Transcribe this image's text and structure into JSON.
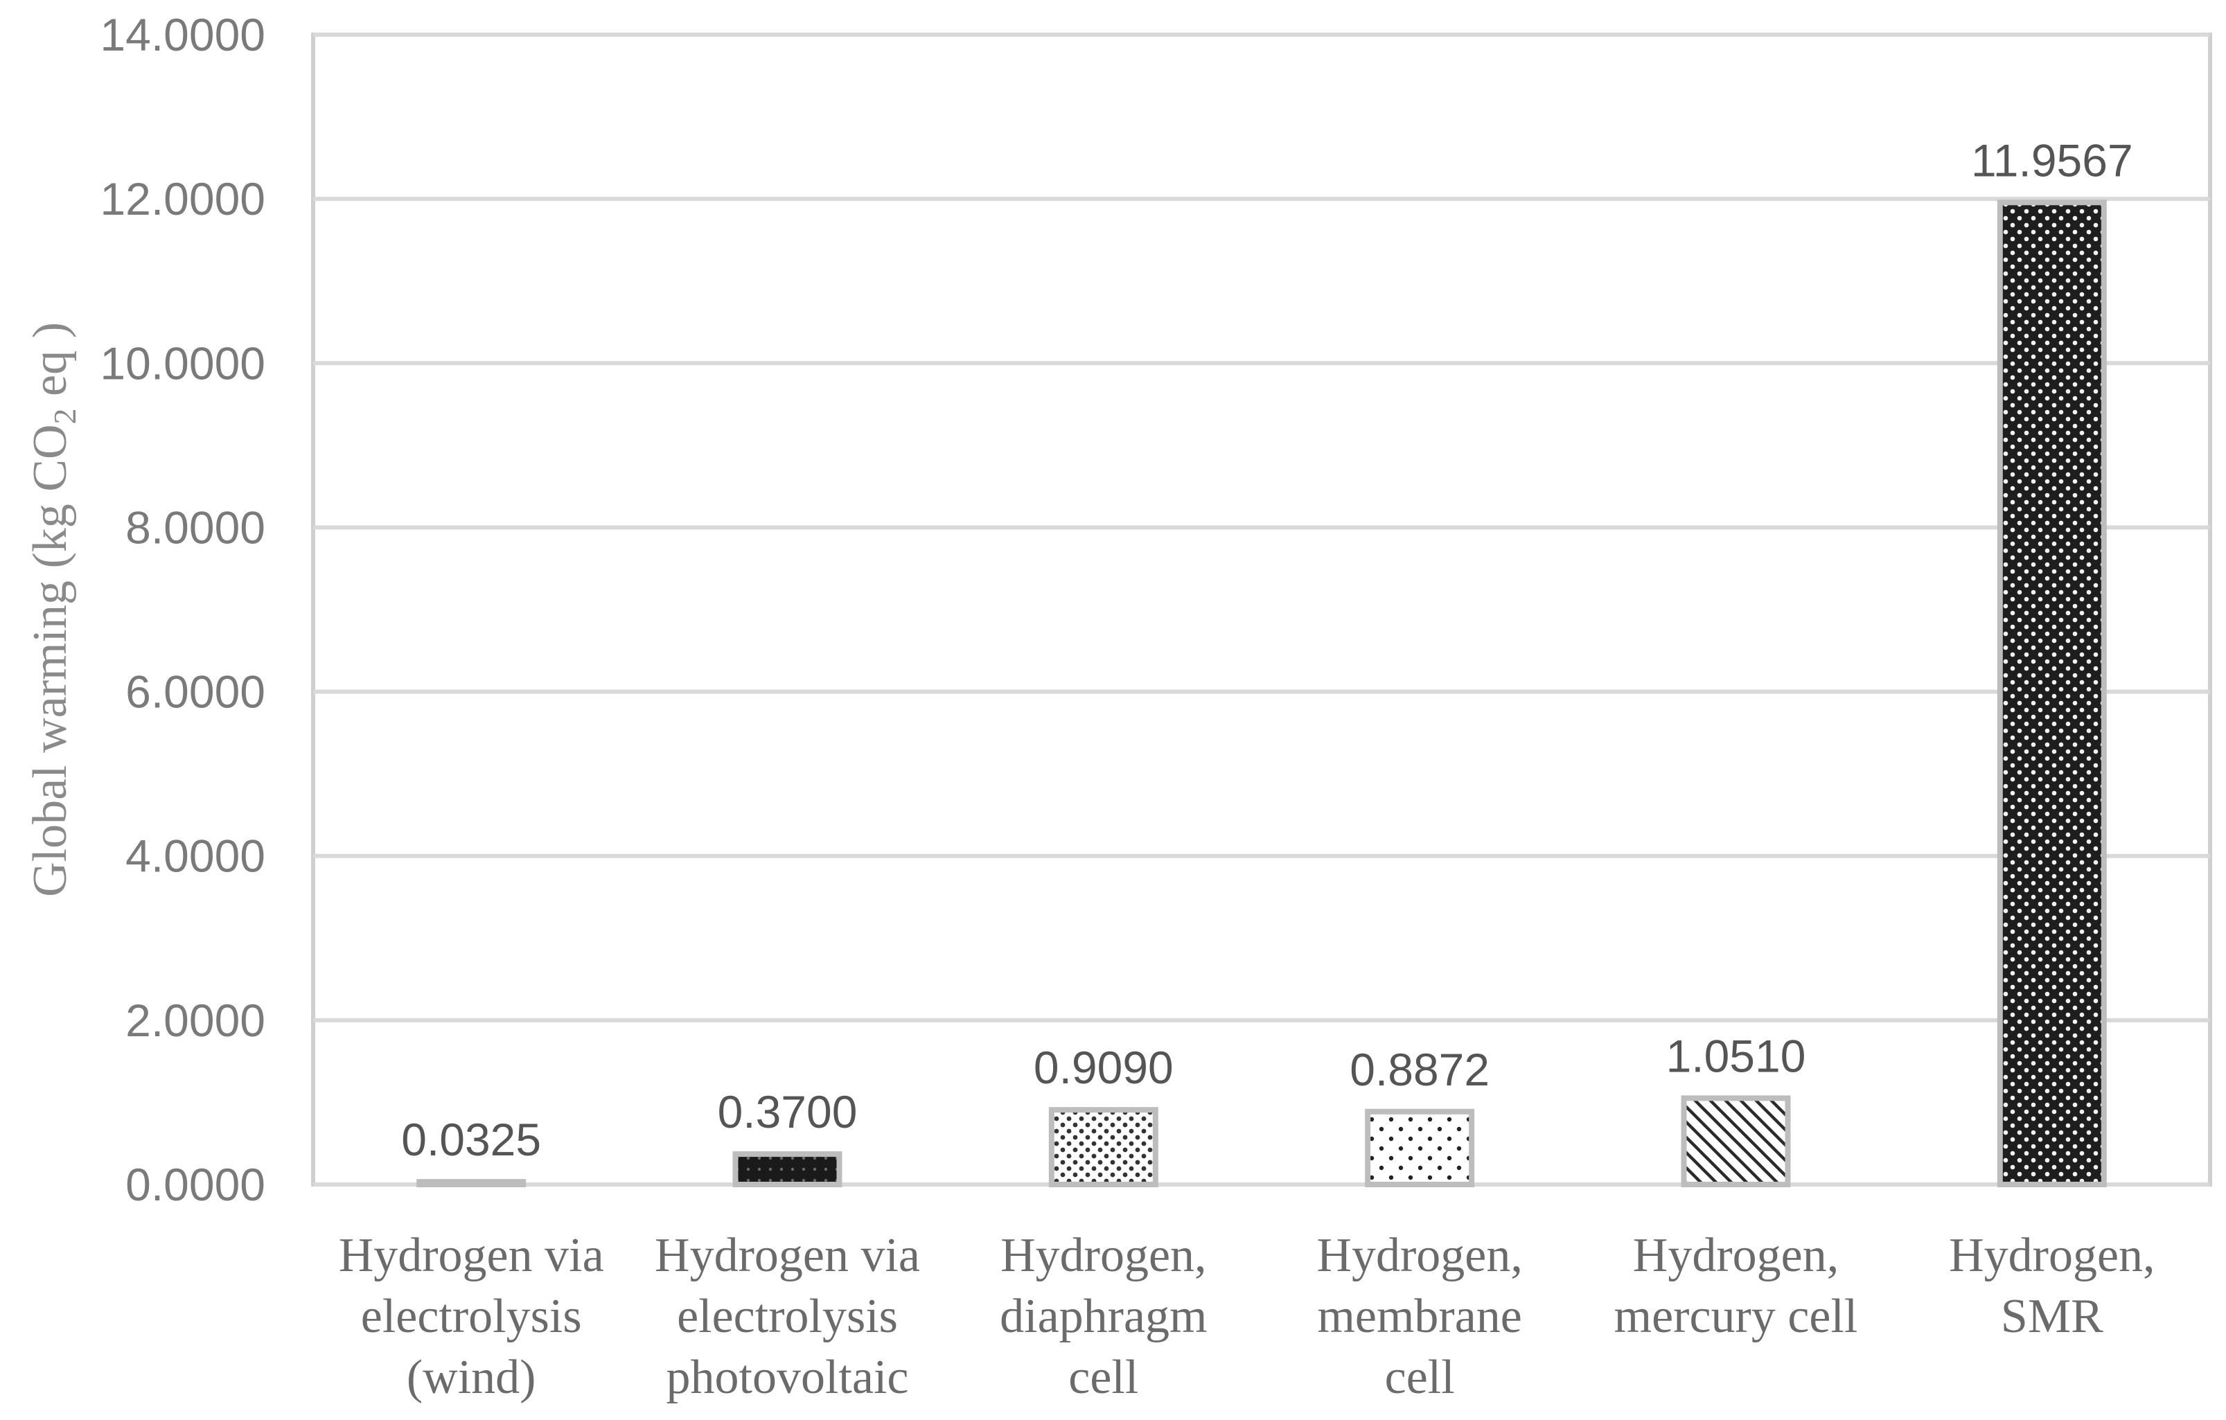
{
  "chart_data": {
    "type": "bar",
    "categories": [
      [
        "Hydrogen via",
        "electrolysis",
        "(wind)"
      ],
      [
        "Hydrogen via",
        "electrolysis",
        "photovoltaic"
      ],
      [
        "Hydrogen,",
        "diaphragm",
        "cell"
      ],
      [
        "Hydrogen,",
        "membrane",
        "cell"
      ],
      [
        "Hydrogen,",
        "mercury cell"
      ],
      [
        "Hydrogen,",
        "SMR"
      ]
    ],
    "values": [
      0.0325,
      0.37,
      0.909,
      0.8872,
      1.051,
      11.9567
    ],
    "data_labels": [
      "0.0325",
      "0.3700",
      "0.9090",
      "0.8872",
      "1.0510",
      "11.9567"
    ],
    "bar_patterns": [
      "blank",
      "solid-dark",
      "dots",
      "sparse-dots",
      "diagonal",
      "dense-check"
    ],
    "ylabel": {
      "prefix": "Global warming (kg CO",
      "subscript": "2",
      "suffix": " eq )"
    },
    "ylim": [
      0,
      14
    ],
    "yticks": [
      {
        "value": 0,
        "label": "0.0000"
      },
      {
        "value": 2,
        "label": "2.0000"
      },
      {
        "value": 4,
        "label": "4.0000"
      },
      {
        "value": 6,
        "label": "6.0000"
      },
      {
        "value": 8,
        "label": "8.0000"
      },
      {
        "value": 10,
        "label": "10.0000"
      },
      {
        "value": 12,
        "label": "12.0000"
      },
      {
        "value": 14,
        "label": "14.0000"
      }
    ],
    "grid": true,
    "legend": "none"
  }
}
